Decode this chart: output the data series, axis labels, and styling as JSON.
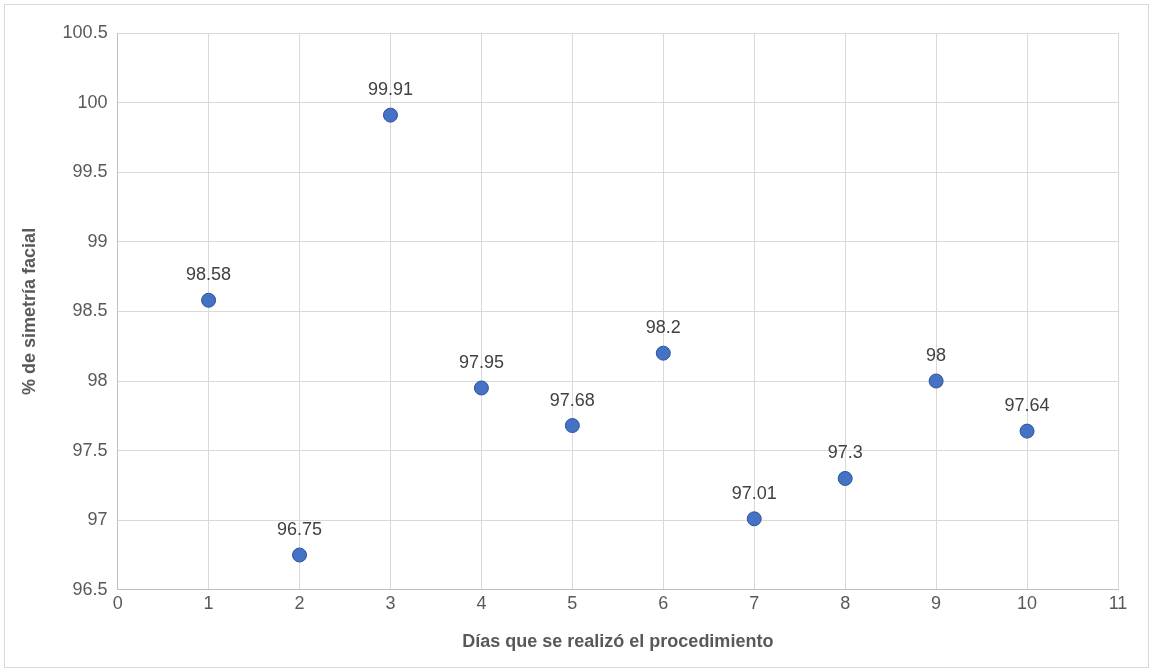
{
  "chart_data": {
    "type": "scatter",
    "xlabel": "Días que se realizó el procedimiento",
    "ylabel": "% de simetría facial",
    "x": [
      1,
      2,
      3,
      4,
      5,
      6,
      7,
      8,
      9,
      10
    ],
    "values": [
      98.58,
      96.75,
      99.91,
      97.95,
      97.68,
      98.2,
      97.01,
      97.3,
      98,
      97.64
    ],
    "color": "#4472c4",
    "marker": "circle",
    "data_labels": true,
    "grid": true,
    "legend": false,
    "xlim": [
      0,
      11
    ],
    "xticks": [
      0,
      1,
      2,
      3,
      4,
      5,
      6,
      7,
      8,
      9,
      10,
      11
    ],
    "ylim": [
      96.5,
      100.5
    ],
    "yticks": [
      96.5,
      97,
      97.5,
      98,
      98.5,
      99,
      99.5,
      100,
      100.5
    ]
  }
}
